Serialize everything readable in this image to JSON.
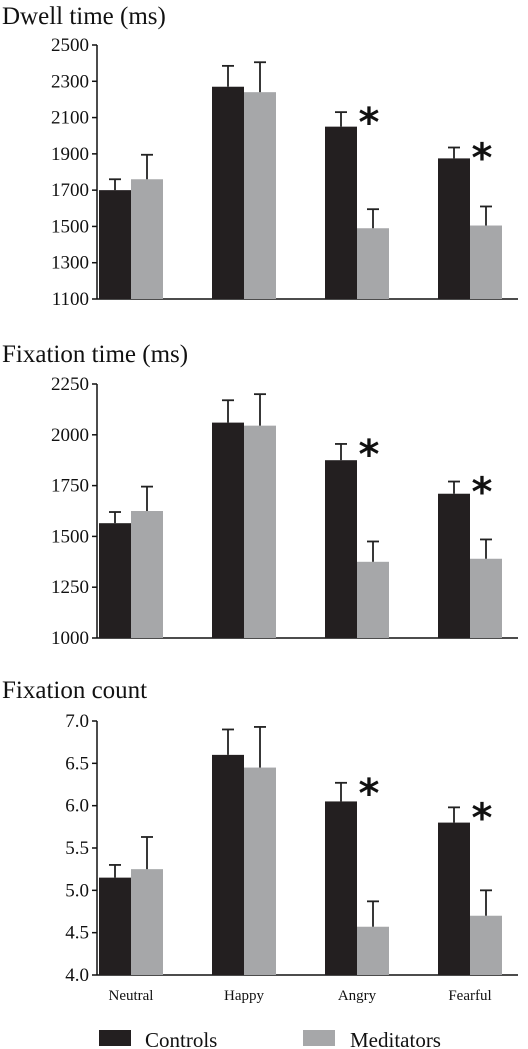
{
  "legend": {
    "controls": "Controls",
    "meditators": "Meditators"
  },
  "colors": {
    "controls": "#231f20",
    "meditators": "#a6a7a9"
  },
  "chart_data": [
    {
      "type": "bar",
      "title": "Dwell time (ms)",
      "categories": [
        "Neutral",
        "Happy",
        "Angry",
        "Fearful"
      ],
      "ylim": [
        1100,
        2500
      ],
      "yticks": [
        1100,
        1300,
        1500,
        1700,
        1900,
        2100,
        2300,
        2500
      ],
      "tick_labels": [
        "1100",
        "1300",
        "1500",
        "1700",
        "1900",
        "2100",
        "2300",
        "2500"
      ],
      "series": [
        {
          "name": "Controls",
          "values": [
            1700,
            2270,
            2050,
            1875
          ],
          "errors": [
            60,
            115,
            80,
            60
          ]
        },
        {
          "name": "Meditators",
          "values": [
            1760,
            2240,
            1490,
            1505
          ],
          "errors": [
            135,
            165,
            105,
            105
          ]
        }
      ],
      "significance": [
        "",
        "",
        "*",
        "*"
      ]
    },
    {
      "type": "bar",
      "title": "Fixation time (ms)",
      "categories": [
        "Neutral",
        "Happy",
        "Angry",
        "Fearful"
      ],
      "ylim": [
        1000,
        2250
      ],
      "yticks": [
        1000,
        1250,
        1500,
        1750,
        2000,
        2250
      ],
      "tick_labels": [
        "1000",
        "1250",
        "1500",
        "1750",
        "2000",
        "2250"
      ],
      "series": [
        {
          "name": "Controls",
          "values": [
            1565,
            2060,
            1875,
            1710
          ],
          "errors": [
            55,
            110,
            80,
            60
          ]
        },
        {
          "name": "Meditators",
          "values": [
            1625,
            2045,
            1375,
            1390
          ],
          "errors": [
            120,
            155,
            100,
            95
          ]
        }
      ],
      "significance": [
        "",
        "",
        "*",
        "*"
      ]
    },
    {
      "type": "bar",
      "title": "Fixation count",
      "categories": [
        "Neutral",
        "Happy",
        "Angry",
        "Fearful"
      ],
      "ylim": [
        4.0,
        7.0
      ],
      "yticks": [
        4.0,
        4.5,
        5.0,
        5.5,
        6.0,
        6.5,
        7.0
      ],
      "tick_labels": [
        "4.0",
        "4.5",
        "5.0",
        "5.5",
        "6.0",
        "6.5",
        "7.0"
      ],
      "series": [
        {
          "name": "Controls",
          "values": [
            5.15,
            6.6,
            6.05,
            5.8
          ],
          "errors": [
            0.15,
            0.3,
            0.22,
            0.18
          ]
        },
        {
          "name": "Meditators",
          "values": [
            5.25,
            6.45,
            4.57,
            4.7
          ],
          "errors": [
            0.38,
            0.48,
            0.3,
            0.3
          ]
        }
      ],
      "significance": [
        "",
        "",
        "*",
        "*"
      ]
    }
  ]
}
